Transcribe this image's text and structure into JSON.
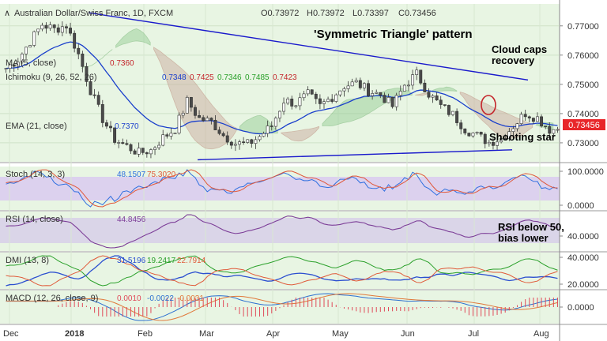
{
  "header": {
    "symbol": "Australian Dollar/Swiss Franc, 1D, FXCM",
    "ohlc": [
      {
        "k": "O",
        "v": "0.73972"
      },
      {
        "k": "H",
        "v": "0.73972"
      },
      {
        "k": "L",
        "v": "0.73397"
      },
      {
        "k": "C",
        "v": "0.73456"
      }
    ]
  },
  "colors": {
    "bg": "#e8f5e3",
    "bull": "#ffffff",
    "bear": "#4a4a4a",
    "trend": "#1a1acc",
    "ma": "#1a3fcc",
    "cloud_green": "#8fc98f",
    "cloud_red": "#c9a59a",
    "stoch_k": "#2f6fe0",
    "stoch_d": "#e0583a",
    "rsi": "#7d3f98",
    "dmi_plus": "#2aa02a",
    "dmi_minus": "#e05a3a",
    "adx": "#2b4fd0",
    "macd": "#2b6fd0",
    "macd_signal": "#e0783a",
    "hist": "#e04a5a",
    "price_badge": "#e8262a"
  },
  "indicators": [
    {
      "name": "MA (5, close)",
      "values": [
        {
          "v": "0.7360",
          "c": "#c4242a"
        }
      ]
    },
    {
      "name": "Ichimoku (9, 26, 52, 26)",
      "values": [
        {
          "v": "0.7348",
          "c": "#1a3fcc"
        },
        {
          "v": "0.7425",
          "c": "#c4242a"
        },
        {
          "v": "0.7346",
          "c": "#2aa02a"
        },
        {
          "v": "0.7485",
          "c": "#2aa02a"
        },
        {
          "v": "0.7423",
          "c": "#c4242a"
        }
      ]
    },
    {
      "name": "EMA (21, close)",
      "values": [
        {
          "v": "0.7370",
          "c": "#1a3fcc"
        }
      ]
    }
  ],
  "annotations": {
    "pattern_title": "'Symmetric Triangle' pattern",
    "cloud_note_line1": "Cloud caps",
    "cloud_note_line2": "recovery",
    "shooting_star": "Shooting star",
    "rsi_note_line1": "RSI below 50,",
    "rsi_note_line2": "bias lower"
  },
  "chart_data": {
    "type": "candlestick",
    "title": "Australian Dollar/Swiss Franc, 1D, FXCM",
    "x_ticks": [
      "Dec",
      "2018",
      "Feb",
      "Mar",
      "Apr",
      "May",
      "Jun",
      "Jul",
      "Aug"
    ],
    "price_axis": {
      "ticks": [
        "0.77000",
        "0.76000",
        "0.75000",
        "0.74000",
        "0.73000"
      ],
      "ylim": [
        0.7235,
        0.7775
      ]
    },
    "last_price": "0.73456",
    "price_path": [
      0.7555,
      0.7585,
      0.7648,
      0.7705,
      0.7688,
      0.7702,
      0.7602,
      0.748,
      0.7382,
      0.7312,
      0.7288,
      0.7265,
      0.7275,
      0.7318,
      0.7348,
      0.7442,
      0.7383,
      0.7372,
      0.7326,
      0.7298,
      0.7295,
      0.7322,
      0.7358,
      0.7445,
      0.7435,
      0.7465,
      0.7425,
      0.7458,
      0.7495,
      0.7505,
      0.7478,
      0.7465,
      0.7425,
      0.7498,
      0.7535,
      0.7468,
      0.7425,
      0.7396,
      0.7348,
      0.7325,
      0.7302,
      0.7315,
      0.7358,
      0.7402,
      0.7385,
      0.7346
    ],
    "trendlines": {
      "upper": [
        [
          0.7745,
          0.7745
        ],
        [
          0.7515,
          0.7515
        ]
      ],
      "lower": [
        [
          0.7242,
          0.7242
        ],
        [
          0.7276,
          0.7276
        ]
      ]
    },
    "panels": [
      {
        "name": "Stoch (14, 3, 3)",
        "values": [
          "48.1507",
          "75.3020"
        ],
        "axis_ticks": [
          "100.0000",
          "0.0000"
        ],
        "range": [
          0,
          100
        ]
      },
      {
        "name": "RSI (14, close)",
        "values": [
          "44.8456"
        ],
        "axis_ticks": [
          "40.0000"
        ],
        "range": [
          20,
          80
        ]
      },
      {
        "name": "DMI (13, 8)",
        "values": [
          "31.5196",
          "19.2417",
          "22.7914"
        ],
        "axis_ticks": [
          "40.0000",
          "20.0000"
        ],
        "range": [
          0,
          60
        ]
      },
      {
        "name": "MACD (12, 26, close, 9)",
        "values": [
          "0.0010",
          "-0.0022",
          "-0.0031"
        ],
        "axis_ticks": [
          "0.0000"
        ],
        "range": [
          -0.006,
          0.004
        ]
      }
    ],
    "value_colors": {
      "stoch": [
        "#2f6fe0",
        "#e0583a"
      ],
      "rsi": [
        "#7d3f98"
      ],
      "dmi": [
        "#2b4fd0",
        "#2aa02a",
        "#e05a3a"
      ],
      "macd": [
        "#e04a5a",
        "#2b6fd0",
        "#e0783a"
      ]
    }
  }
}
